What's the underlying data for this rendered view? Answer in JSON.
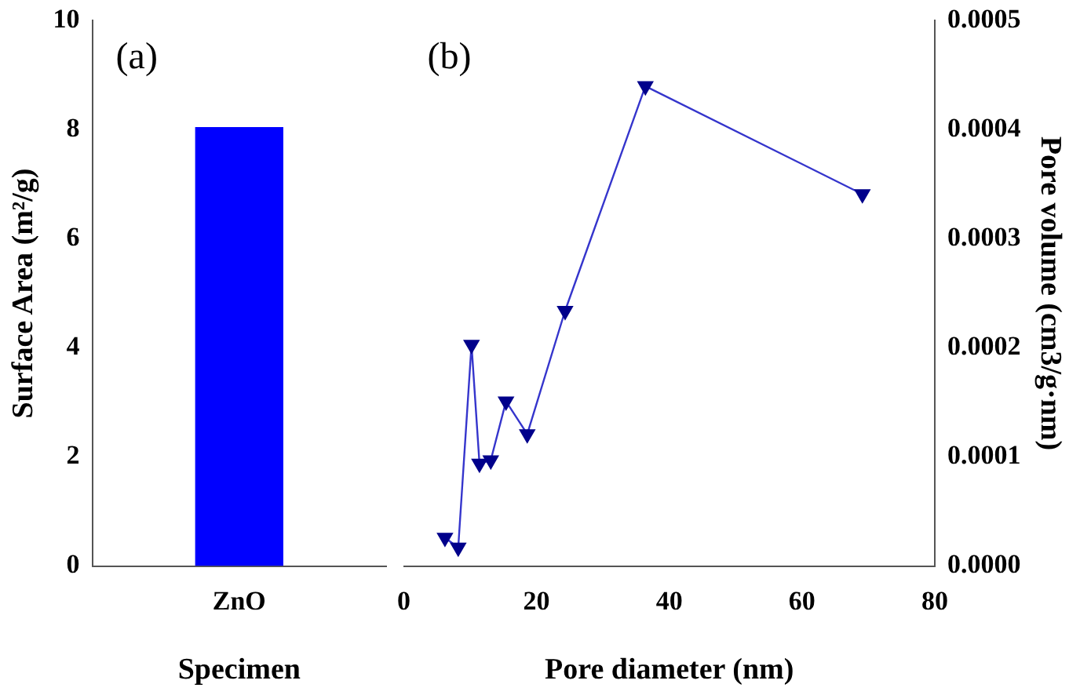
{
  "chart_data": [
    {
      "type": "bar",
      "categories": [
        "ZnO"
      ],
      "values": [
        8.05
      ],
      "color": "#0000ff",
      "ylim": [
        0,
        10
      ],
      "yticks": [
        0,
        2,
        4,
        6,
        8,
        10
      ],
      "ylabel": "Surface Area (m²/g)",
      "xlabel": "Specimen",
      "annotations": [
        "(a)"
      ],
      "grid": false,
      "legend": false
    },
    {
      "type": "line",
      "series": [
        {
          "color": "#3535cc",
          "axis": "y2",
          "x": [
            6.2,
            8.2,
            10.2,
            11.4,
            13.1,
            15.4,
            18.6,
            24.3,
            36.4,
            69.1
          ],
          "values": [
            2.6e-05,
            1.7e-05,
            0.000203,
            9.4e-05,
            9.7e-05,
            0.000151,
            0.000121,
            0.000234,
            0.00044,
            0.000341
          ]
        }
      ],
      "xlim": [
        0,
        80
      ],
      "xticks": [
        0,
        20,
        40,
        60,
        80
      ],
      "y2lim": [
        0,
        0.0005
      ],
      "y2ticks": [
        {
          "value": 0,
          "label": "0.0000"
        },
        {
          "value": 0.0001,
          "label": "0.0001"
        },
        {
          "value": 0.0002,
          "label": "0.0002"
        },
        {
          "value": 0.0003,
          "label": "0.0003"
        },
        {
          "value": 0.0004,
          "label": "0.0004"
        },
        {
          "value": 0.0005,
          "label": "0.0005"
        }
      ],
      "xlabel": "Pore diameter (nm)",
      "y2label": "Pore volume (cm3/g·nm)",
      "annotations": [
        "(b)"
      ],
      "marker": "triangle",
      "line_style": "solid",
      "grid": false,
      "legend": false
    }
  ]
}
